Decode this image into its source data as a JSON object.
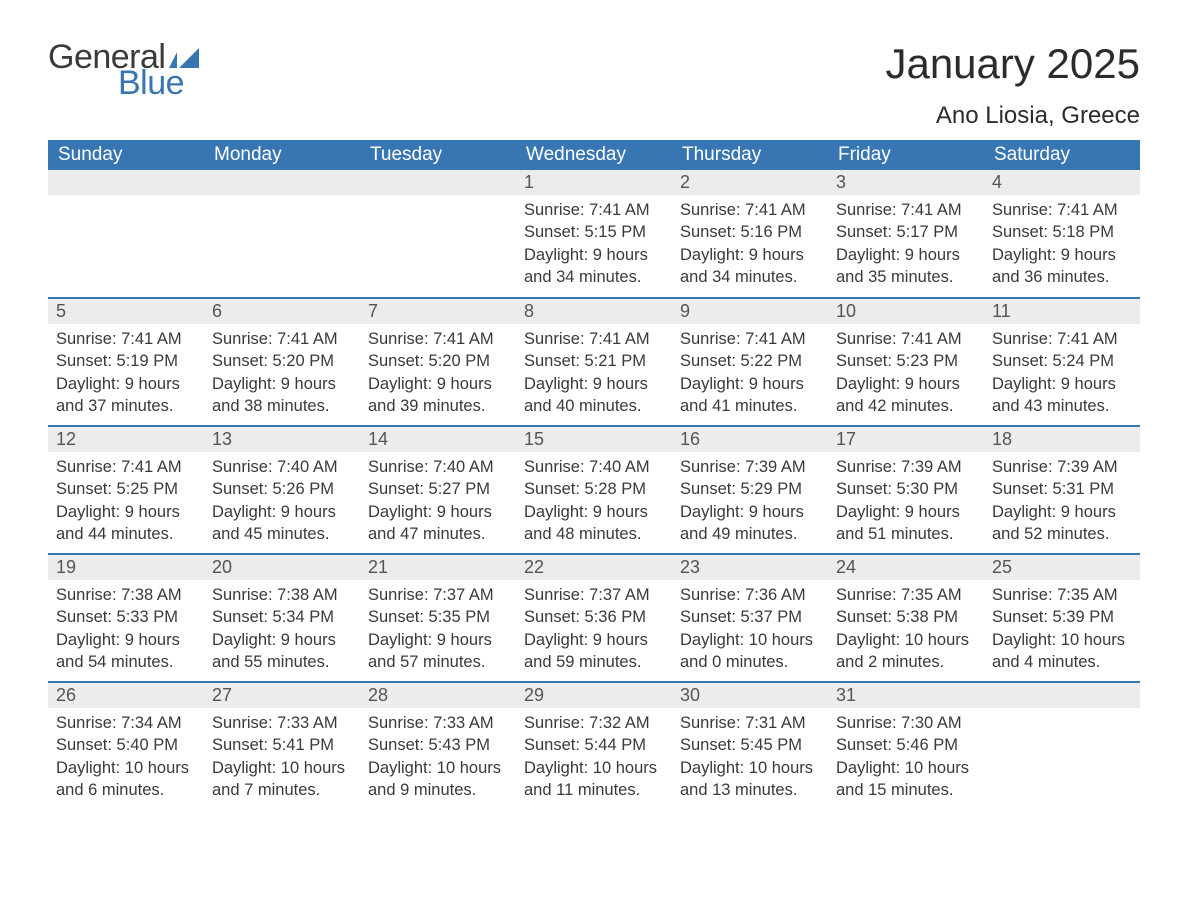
{
  "brand": {
    "word1": "General",
    "word2": "Blue",
    "flag_color": "#3876b3"
  },
  "title": "January 2025",
  "location": "Ano Liosia, Greece",
  "colors": {
    "header_bg": "#3876b3",
    "header_text": "#ffffff",
    "daynum_bg": "#ececec",
    "body_text": "#3a3a3a",
    "row_border": "#3876b3",
    "page_bg": "#ffffff"
  },
  "typography": {
    "title_fontsize": 42,
    "location_fontsize": 24,
    "header_fontsize": 19,
    "daynum_fontsize": 18,
    "body_fontsize": 16.5
  },
  "weekday_headers": [
    "Sunday",
    "Monday",
    "Tuesday",
    "Wednesday",
    "Thursday",
    "Friday",
    "Saturday"
  ],
  "weeks": [
    [
      null,
      null,
      null,
      {
        "n": "1",
        "sunrise": "7:41 AM",
        "sunset": "5:15 PM",
        "daylight": "9 hours and 34 minutes."
      },
      {
        "n": "2",
        "sunrise": "7:41 AM",
        "sunset": "5:16 PM",
        "daylight": "9 hours and 34 minutes."
      },
      {
        "n": "3",
        "sunrise": "7:41 AM",
        "sunset": "5:17 PM",
        "daylight": "9 hours and 35 minutes."
      },
      {
        "n": "4",
        "sunrise": "7:41 AM",
        "sunset": "5:18 PM",
        "daylight": "9 hours and 36 minutes."
      }
    ],
    [
      {
        "n": "5",
        "sunrise": "7:41 AM",
        "sunset": "5:19 PM",
        "daylight": "9 hours and 37 minutes."
      },
      {
        "n": "6",
        "sunrise": "7:41 AM",
        "sunset": "5:20 PM",
        "daylight": "9 hours and 38 minutes."
      },
      {
        "n": "7",
        "sunrise": "7:41 AM",
        "sunset": "5:20 PM",
        "daylight": "9 hours and 39 minutes."
      },
      {
        "n": "8",
        "sunrise": "7:41 AM",
        "sunset": "5:21 PM",
        "daylight": "9 hours and 40 minutes."
      },
      {
        "n": "9",
        "sunrise": "7:41 AM",
        "sunset": "5:22 PM",
        "daylight": "9 hours and 41 minutes."
      },
      {
        "n": "10",
        "sunrise": "7:41 AM",
        "sunset": "5:23 PM",
        "daylight": "9 hours and 42 minutes."
      },
      {
        "n": "11",
        "sunrise": "7:41 AM",
        "sunset": "5:24 PM",
        "daylight": "9 hours and 43 minutes."
      }
    ],
    [
      {
        "n": "12",
        "sunrise": "7:41 AM",
        "sunset": "5:25 PM",
        "daylight": "9 hours and 44 minutes."
      },
      {
        "n": "13",
        "sunrise": "7:40 AM",
        "sunset": "5:26 PM",
        "daylight": "9 hours and 45 minutes."
      },
      {
        "n": "14",
        "sunrise": "7:40 AM",
        "sunset": "5:27 PM",
        "daylight": "9 hours and 47 minutes."
      },
      {
        "n": "15",
        "sunrise": "7:40 AM",
        "sunset": "5:28 PM",
        "daylight": "9 hours and 48 minutes."
      },
      {
        "n": "16",
        "sunrise": "7:39 AM",
        "sunset": "5:29 PM",
        "daylight": "9 hours and 49 minutes."
      },
      {
        "n": "17",
        "sunrise": "7:39 AM",
        "sunset": "5:30 PM",
        "daylight": "9 hours and 51 minutes."
      },
      {
        "n": "18",
        "sunrise": "7:39 AM",
        "sunset": "5:31 PM",
        "daylight": "9 hours and 52 minutes."
      }
    ],
    [
      {
        "n": "19",
        "sunrise": "7:38 AM",
        "sunset": "5:33 PM",
        "daylight": "9 hours and 54 minutes."
      },
      {
        "n": "20",
        "sunrise": "7:38 AM",
        "sunset": "5:34 PM",
        "daylight": "9 hours and 55 minutes."
      },
      {
        "n": "21",
        "sunrise": "7:37 AM",
        "sunset": "5:35 PM",
        "daylight": "9 hours and 57 minutes."
      },
      {
        "n": "22",
        "sunrise": "7:37 AM",
        "sunset": "5:36 PM",
        "daylight": "9 hours and 59 minutes."
      },
      {
        "n": "23",
        "sunrise": "7:36 AM",
        "sunset": "5:37 PM",
        "daylight": "10 hours and 0 minutes."
      },
      {
        "n": "24",
        "sunrise": "7:35 AM",
        "sunset": "5:38 PM",
        "daylight": "10 hours and 2 minutes."
      },
      {
        "n": "25",
        "sunrise": "7:35 AM",
        "sunset": "5:39 PM",
        "daylight": "10 hours and 4 minutes."
      }
    ],
    [
      {
        "n": "26",
        "sunrise": "7:34 AM",
        "sunset": "5:40 PM",
        "daylight": "10 hours and 6 minutes."
      },
      {
        "n": "27",
        "sunrise": "7:33 AM",
        "sunset": "5:41 PM",
        "daylight": "10 hours and 7 minutes."
      },
      {
        "n": "28",
        "sunrise": "7:33 AM",
        "sunset": "5:43 PM",
        "daylight": "10 hours and 9 minutes."
      },
      {
        "n": "29",
        "sunrise": "7:32 AM",
        "sunset": "5:44 PM",
        "daylight": "10 hours and 11 minutes."
      },
      {
        "n": "30",
        "sunrise": "7:31 AM",
        "sunset": "5:45 PM",
        "daylight": "10 hours and 13 minutes."
      },
      {
        "n": "31",
        "sunrise": "7:30 AM",
        "sunset": "5:46 PM",
        "daylight": "10 hours and 15 minutes."
      },
      null
    ]
  ],
  "labels": {
    "sunrise": "Sunrise: ",
    "sunset": "Sunset: ",
    "daylight": "Daylight: "
  }
}
